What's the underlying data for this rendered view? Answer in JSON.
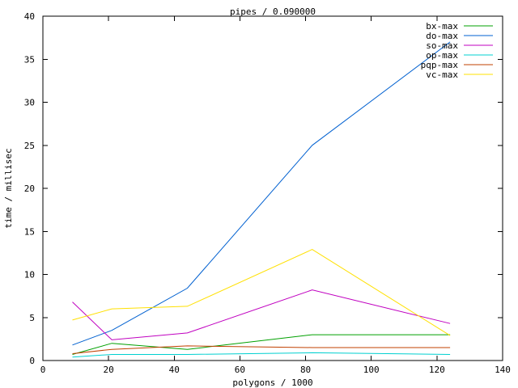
{
  "chart_data": {
    "type": "line",
    "title": "pipes / 0.090000",
    "xlabel": "polygons / 1000",
    "ylabel": "time / millisec",
    "xlim": [
      0,
      140
    ],
    "ylim": [
      0,
      40
    ],
    "xticks": [
      0,
      20,
      40,
      60,
      80,
      100,
      120,
      140
    ],
    "yticks": [
      0,
      5,
      10,
      15,
      20,
      25,
      30,
      35,
      40
    ],
    "grid": false,
    "legend": "top-right",
    "series": [
      {
        "name": "bx-max",
        "color": "#00a000",
        "x": [
          9,
          21,
          44,
          82,
          124
        ],
        "y": [
          0.7,
          2.0,
          1.3,
          3.0,
          3.0
        ]
      },
      {
        "name": "do-max",
        "color": "#0060d0",
        "x": [
          9,
          21,
          44,
          82,
          124
        ],
        "y": [
          1.8,
          3.5,
          8.4,
          25.0,
          37.0
        ]
      },
      {
        "name": "so-max",
        "color": "#c000c0",
        "x": [
          9,
          21,
          44,
          82,
          124
        ],
        "y": [
          6.8,
          2.4,
          3.2,
          8.2,
          4.3
        ]
      },
      {
        "name": "op-max",
        "color": "#00d0d0",
        "x": [
          9,
          21,
          44,
          82,
          124
        ],
        "y": [
          0.4,
          0.7,
          0.7,
          0.9,
          0.7
        ]
      },
      {
        "name": "pqp-max",
        "color": "#c04000",
        "x": [
          9,
          21,
          44,
          82,
          124
        ],
        "y": [
          0.8,
          1.3,
          1.7,
          1.5,
          1.5
        ]
      },
      {
        "name": "vc-max",
        "color": "#ffe000",
        "x": [
          9,
          21,
          44,
          82,
          124
        ],
        "y": [
          4.7,
          6.0,
          6.3,
          12.9,
          2.9
        ]
      }
    ]
  }
}
